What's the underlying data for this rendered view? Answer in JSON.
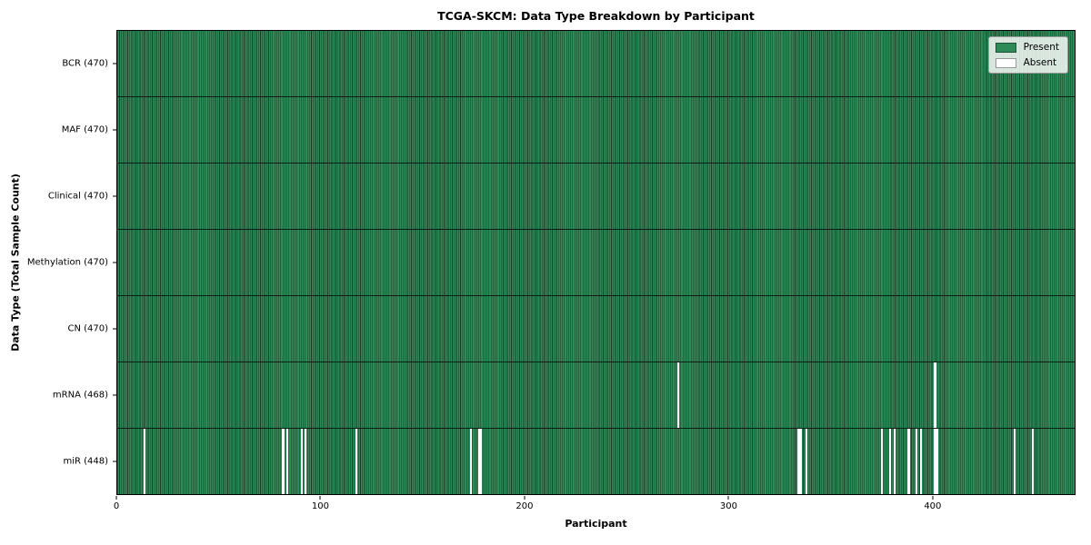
{
  "chart_data": {
    "type": "heatmap",
    "title": "TCGA-SKCM: Data Type Breakdown by Participant",
    "xlabel": "Participant",
    "ylabel": "Data Type (Total Sample Count)",
    "n_participants": 470,
    "x_range": [
      0,
      470
    ],
    "xticks": [
      0,
      100,
      200,
      300,
      400
    ],
    "legend_position": "upper right",
    "grid": false,
    "colors": {
      "present": "#2e8b57",
      "absent": "#ffffff",
      "bar_edge": "#173f2a",
      "row_separator": "#000000"
    },
    "rows": [
      {
        "data_type": "BCR",
        "label": "BCR (470)",
        "present_count": 470,
        "absent_count": 0,
        "absent_participants": []
      },
      {
        "data_type": "MAF",
        "label": "MAF (470)",
        "present_count": 470,
        "absent_count": 0,
        "absent_participants": []
      },
      {
        "data_type": "Clinical",
        "label": "Clinical (470)",
        "present_count": 470,
        "absent_count": 0,
        "absent_participants": []
      },
      {
        "data_type": "Methylation",
        "label": "Methylation (470)",
        "present_count": 470,
        "absent_count": 0,
        "absent_participants": []
      },
      {
        "data_type": "CN",
        "label": "CN (470)",
        "present_count": 470,
        "absent_count": 0,
        "absent_participants": []
      },
      {
        "data_type": "mRNA",
        "label": "mRNA (468)",
        "present_count": 468,
        "absent_count": 2,
        "absent_participants": [
          275,
          401
        ]
      },
      {
        "data_type": "miR",
        "label": "miR (448)",
        "present_count": 448,
        "absent_count": 22,
        "absent_participants": [
          13,
          81,
          83,
          90,
          92,
          117,
          173,
          177,
          178,
          334,
          335,
          338,
          375,
          379,
          381,
          388,
          392,
          394,
          401,
          402,
          440,
          449
        ]
      }
    ]
  },
  "legend": {
    "items": [
      {
        "label": "Present",
        "color": "#2e8b57"
      },
      {
        "label": "Absent",
        "color": "#ffffff"
      }
    ]
  }
}
